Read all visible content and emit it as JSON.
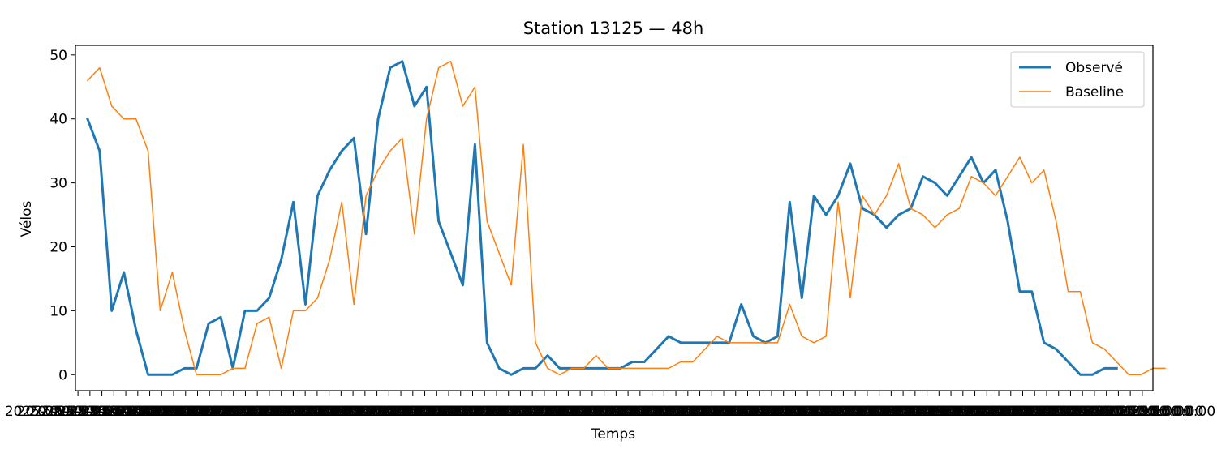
{
  "chart_data": {
    "type": "line",
    "title": "Station 13125 — 48h",
    "xlabel": "Temps",
    "ylabel": "Vélos",
    "ylim": [
      -2.5,
      51.5
    ],
    "yticks": [
      0,
      10,
      20,
      30,
      40,
      50
    ],
    "xlim": [
      -1,
      88
    ],
    "x_tick_count": 90,
    "x_tick_last_label": "2025-09-29 15:00:00",
    "x_tick_first_label": "2025-09-27 15:00:00",
    "legend_position": "top-right",
    "series": [
      {
        "name": "Observé",
        "color": "#1f77b4",
        "values": [
          40,
          35,
          10,
          16,
          7,
          0,
          0,
          0,
          1,
          1,
          8,
          9,
          1,
          10,
          10,
          12,
          18,
          27,
          11,
          28,
          32,
          35,
          37,
          22,
          40,
          48,
          49,
          42,
          45,
          24,
          19,
          14,
          36,
          5,
          1,
          0,
          1,
          1,
          3,
          1,
          1,
          1,
          1,
          1,
          1,
          2,
          2,
          4,
          6,
          5,
          5,
          5,
          5,
          5,
          11,
          6,
          5,
          6,
          27,
          12,
          28,
          25,
          28,
          33,
          26,
          25,
          23,
          25,
          26,
          31,
          30,
          28,
          31,
          34,
          30,
          32,
          24,
          13,
          13,
          5,
          4,
          2,
          0,
          0,
          1,
          1
        ]
      },
      {
        "name": "Baseline",
        "color": "#ff7f0e",
        "values": [
          46,
          48,
          42,
          40,
          40,
          35,
          10,
          16,
          7,
          0,
          0,
          0,
          1,
          1,
          8,
          9,
          1,
          10,
          10,
          12,
          18,
          27,
          11,
          28,
          32,
          35,
          37,
          22,
          40,
          48,
          49,
          42,
          45,
          24,
          19,
          14,
          36,
          5,
          1,
          0,
          1,
          1,
          3,
          1,
          1,
          1,
          1,
          1,
          1,
          2,
          2,
          4,
          6,
          5,
          5,
          5,
          5,
          5,
          11,
          6,
          5,
          6,
          27,
          12,
          28,
          25,
          28,
          33,
          26,
          25,
          23,
          25,
          26,
          31,
          30,
          28,
          31,
          34,
          30,
          32,
          24,
          13,
          13,
          5,
          4,
          2,
          0,
          0,
          1,
          1
        ]
      }
    ]
  }
}
